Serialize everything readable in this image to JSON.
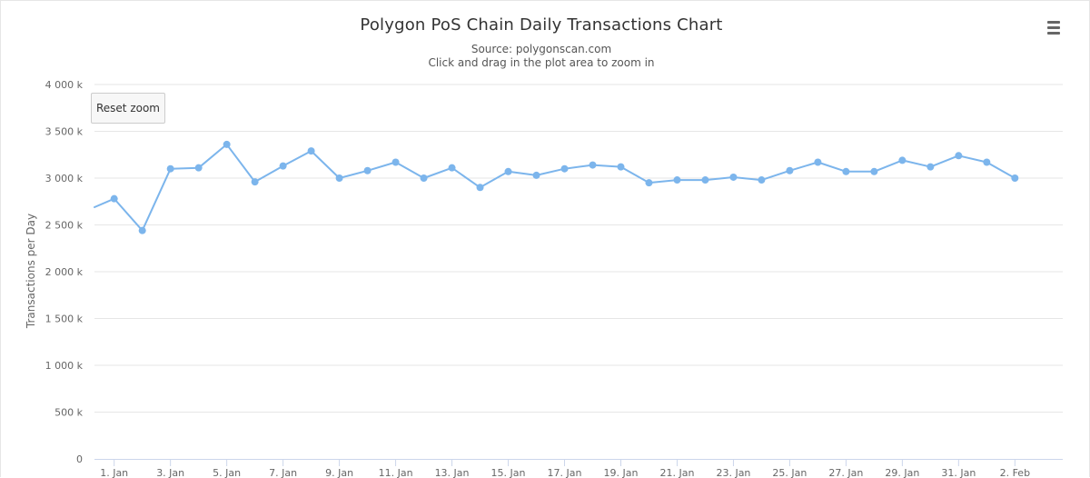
{
  "chart_data": {
    "type": "line",
    "title": "Polygon PoS Chain Daily Transactions Chart",
    "subtitle_lines": [
      "Source: polygonscan.com",
      "Click and drag in the plot area to zoom in"
    ],
    "ylabel": "Transactions per Day",
    "xlabel": "",
    "ylim": [
      0,
      4000000
    ],
    "y_ticks": [
      {
        "value": 0,
        "label": "0"
      },
      {
        "value": 500000,
        "label": "500 k"
      },
      {
        "value": 1000000,
        "label": "1 000 k"
      },
      {
        "value": 1500000,
        "label": "1 500 k"
      },
      {
        "value": 2000000,
        "label": "2 000 k"
      },
      {
        "value": 2500000,
        "label": "2 500 k"
      },
      {
        "value": 3000000,
        "label": "3 000 k"
      },
      {
        "value": 3500000,
        "label": "3 500 k"
      },
      {
        "value": 4000000,
        "label": "4 000 k"
      }
    ],
    "x_range_days": [
      -0.7,
      33.7
    ],
    "x_ticks": [
      {
        "day": 0,
        "label": "1. Jan"
      },
      {
        "day": 2,
        "label": "3. Jan"
      },
      {
        "day": 4,
        "label": "5. Jan"
      },
      {
        "day": 6,
        "label": "7. Jan"
      },
      {
        "day": 8,
        "label": "9. Jan"
      },
      {
        "day": 10,
        "label": "11. Jan"
      },
      {
        "day": 12,
        "label": "13. Jan"
      },
      {
        "day": 14,
        "label": "15. Jan"
      },
      {
        "day": 16,
        "label": "17. Jan"
      },
      {
        "day": 18,
        "label": "19. Jan"
      },
      {
        "day": 20,
        "label": "21. Jan"
      },
      {
        "day": 22,
        "label": "23. Jan"
      },
      {
        "day": 24,
        "label": "25. Jan"
      },
      {
        "day": 26,
        "label": "27. Jan"
      },
      {
        "day": 28,
        "label": "29. Jan"
      },
      {
        "day": 30,
        "label": "31. Jan"
      },
      {
        "day": 32,
        "label": "2. Feb"
      }
    ],
    "grid": true,
    "legend": "none",
    "series": [
      {
        "name": "Transactions",
        "color": "#7cb5ec",
        "points": [
          {
            "day": -1,
            "value": 2650000,
            "marker": false
          },
          {
            "day": 0,
            "value": 2780000
          },
          {
            "day": 1,
            "value": 2440000
          },
          {
            "day": 2,
            "value": 3100000
          },
          {
            "day": 3,
            "value": 3110000
          },
          {
            "day": 4,
            "value": 3360000
          },
          {
            "day": 5,
            "value": 2960000
          },
          {
            "day": 6,
            "value": 3130000
          },
          {
            "day": 7,
            "value": 3290000
          },
          {
            "day": 8,
            "value": 3000000
          },
          {
            "day": 9,
            "value": 3080000
          },
          {
            "day": 10,
            "value": 3170000
          },
          {
            "day": 11,
            "value": 3000000
          },
          {
            "day": 12,
            "value": 3110000
          },
          {
            "day": 13,
            "value": 2900000
          },
          {
            "day": 14,
            "value": 3070000
          },
          {
            "day": 15,
            "value": 3030000
          },
          {
            "day": 16,
            "value": 3100000
          },
          {
            "day": 17,
            "value": 3140000
          },
          {
            "day": 18,
            "value": 3120000
          },
          {
            "day": 19,
            "value": 2950000
          },
          {
            "day": 20,
            "value": 2980000
          },
          {
            "day": 21,
            "value": 2980000
          },
          {
            "day": 22,
            "value": 3010000
          },
          {
            "day": 23,
            "value": 2980000
          },
          {
            "day": 24,
            "value": 3080000
          },
          {
            "day": 25,
            "value": 3170000
          },
          {
            "day": 26,
            "value": 3070000
          },
          {
            "day": 27,
            "value": 3070000
          },
          {
            "day": 28,
            "value": 3190000
          },
          {
            "day": 29,
            "value": 3120000
          },
          {
            "day": 30,
            "value": 3240000
          },
          {
            "day": 31,
            "value": 3170000
          },
          {
            "day": 32,
            "value": 3000000
          }
        ]
      }
    ]
  },
  "ui": {
    "reset_zoom_label": "Reset zoom",
    "menu_icon": "hamburger-menu-icon",
    "grid_color": "#e6e6e6",
    "axis_color": "#ccd6eb"
  }
}
